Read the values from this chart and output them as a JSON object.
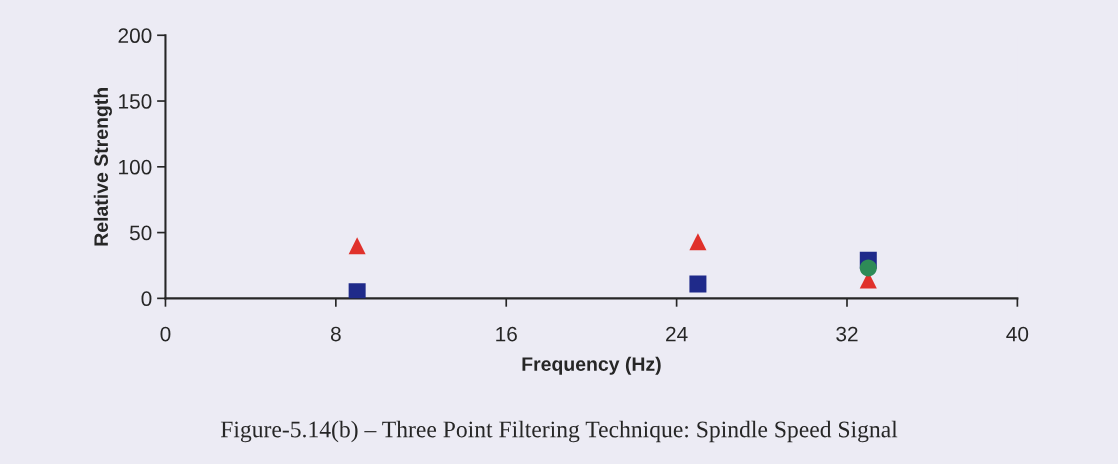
{
  "chart_data": {
    "type": "scatter",
    "xlabel": "Frequency (Hz)",
    "ylabel": "Relative Strength",
    "x": [
      9,
      25,
      33
    ],
    "series": [
      {
        "color": "#2e8b57",
        "marker": "circle",
        "values": [
          null,
          null,
          23
        ]
      },
      {
        "color": "#1f2a8a",
        "marker": "square",
        "values": [
          5,
          11,
          29
        ]
      },
      {
        "color": "#e0312b",
        "marker": "triangle",
        "values": [
          40,
          43,
          14
        ]
      }
    ],
    "xlim": [
      0,
      40
    ],
    "xticks": [
      0,
      8,
      16,
      24,
      32,
      40
    ],
    "ylim": [
      0,
      200
    ],
    "yticks": [
      0,
      50,
      100,
      150,
      200
    ],
    "grid": false,
    "legend": false,
    "annotations": [
      "Figure-5.14(b) – Three Point Filtering Technique: Spindle Speed Signal"
    ]
  }
}
